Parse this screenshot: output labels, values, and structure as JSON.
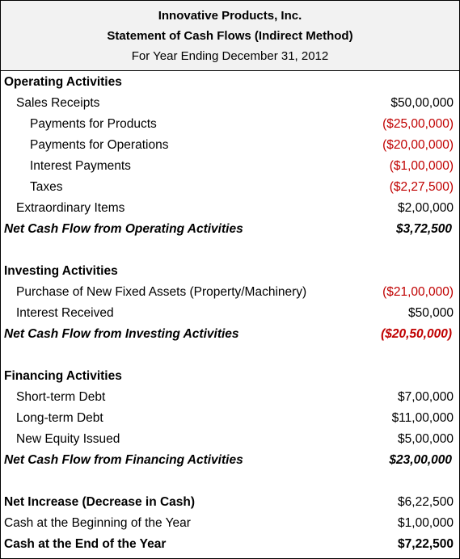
{
  "header": {
    "company": "Innovative Products, Inc.",
    "title": "Statement of Cash Flows (Indirect Method)",
    "period": "For Year Ending December 31, 2012"
  },
  "operating": {
    "heading": "Operating Activities",
    "sales_receipts": {
      "label": "Sales Receipts",
      "amount": "$50,00,000"
    },
    "payments_products": {
      "label": "Payments for Products",
      "amount": "($25,00,000)"
    },
    "payments_operations": {
      "label": "Payments for Operations",
      "amount": "($20,00,000)"
    },
    "interest_payments": {
      "label": "Interest Payments",
      "amount": "($1,00,000)"
    },
    "taxes": {
      "label": "Taxes",
      "amount": "($2,27,500)"
    },
    "extraordinary": {
      "label": "Extraordinary Items",
      "amount": "$2,00,000"
    },
    "net": {
      "label": "Net Cash Flow from Operating Activities",
      "amount": "$3,72,500"
    }
  },
  "investing": {
    "heading": "Investing Activities",
    "purchase_assets": {
      "label": "Purchase of New Fixed Assets (Property/Machinery)",
      "amount": "($21,00,000)"
    },
    "interest_received": {
      "label": "Interest Received",
      "amount": "$50,000"
    },
    "net": {
      "label": "Net Cash Flow from Investing Activities",
      "amount": "($20,50,000)"
    }
  },
  "financing": {
    "heading": "Financing Activities",
    "short_term_debt": {
      "label": "Short-term Debt",
      "amount": "$7,00,000"
    },
    "long_term_debt": {
      "label": "Long-term Debt",
      "amount": "$11,00,000"
    },
    "new_equity": {
      "label": "New Equity Issued",
      "amount": "$5,00,000"
    },
    "net": {
      "label": "Net Cash Flow from Financing Activities",
      "amount": "$23,00,000"
    }
  },
  "summary": {
    "net_increase": {
      "label": "Net Increase (Decrease in Cash)",
      "amount": "$6,22,500"
    },
    "cash_beginning": {
      "label": "Cash at the Beginning of the Year",
      "amount": "$1,00,000"
    },
    "cash_end": {
      "label": "Cash at the End of the Year",
      "amount": "$7,22,500"
    }
  },
  "colors": {
    "negative": "#c00000",
    "header_bg": "#f2f2f2"
  }
}
